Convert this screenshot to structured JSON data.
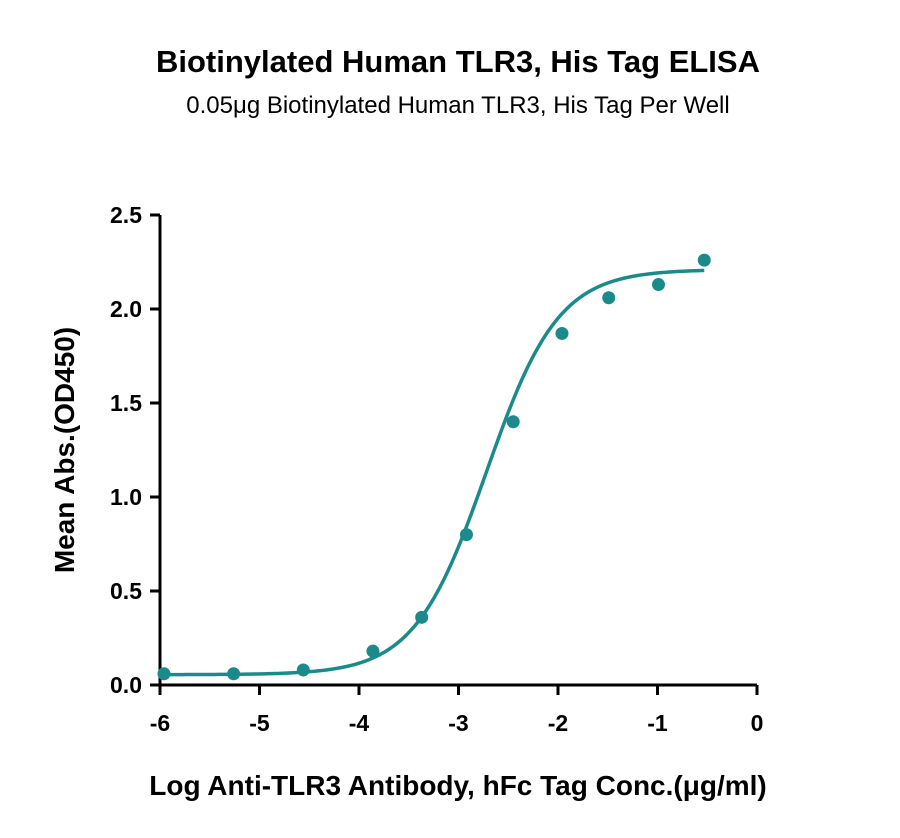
{
  "chart_data": {
    "type": "scatter",
    "title": "Biotinylated Human TLR3, His Tag ELISA",
    "subtitle": "0.05μg Biotinylated Human TLR3, His Tag Per Well",
    "xlabel": "Log Anti-TLR3 Antibody, hFc Tag Conc.(μg/ml)",
    "ylabel": "Mean Abs.(OD450)",
    "xlim": [
      -6,
      0
    ],
    "ylim": [
      0,
      2.5
    ],
    "xticks": [
      -6,
      -5,
      -4,
      -3,
      -2,
      -1,
      0
    ],
    "yticks": [
      0.0,
      0.5,
      1.0,
      1.5,
      2.0,
      2.5
    ],
    "xtick_labels": [
      "-6",
      "-5",
      "-4",
      "-3",
      "-2",
      "-1",
      "0"
    ],
    "ytick_labels": [
      "0.0",
      "0.5",
      "1.0",
      "1.5",
      "2.0",
      "2.5"
    ],
    "color": "#1a8a8a",
    "grid": false,
    "series": [
      {
        "x": [
          -5.96,
          -5.26,
          -4.56,
          -3.86,
          -3.37,
          -2.92,
          -2.45,
          -1.96,
          -1.49,
          -0.99,
          -0.53
        ],
        "y": [
          0.06,
          0.06,
          0.08,
          0.18,
          0.36,
          0.8,
          1.4,
          1.87,
          2.06,
          2.13,
          2.26
        ]
      }
    ],
    "fit": {
      "model": "4PL",
      "bottom": 0.055,
      "top": 2.21,
      "logEC50": -2.72,
      "hill": 1.2
    }
  }
}
